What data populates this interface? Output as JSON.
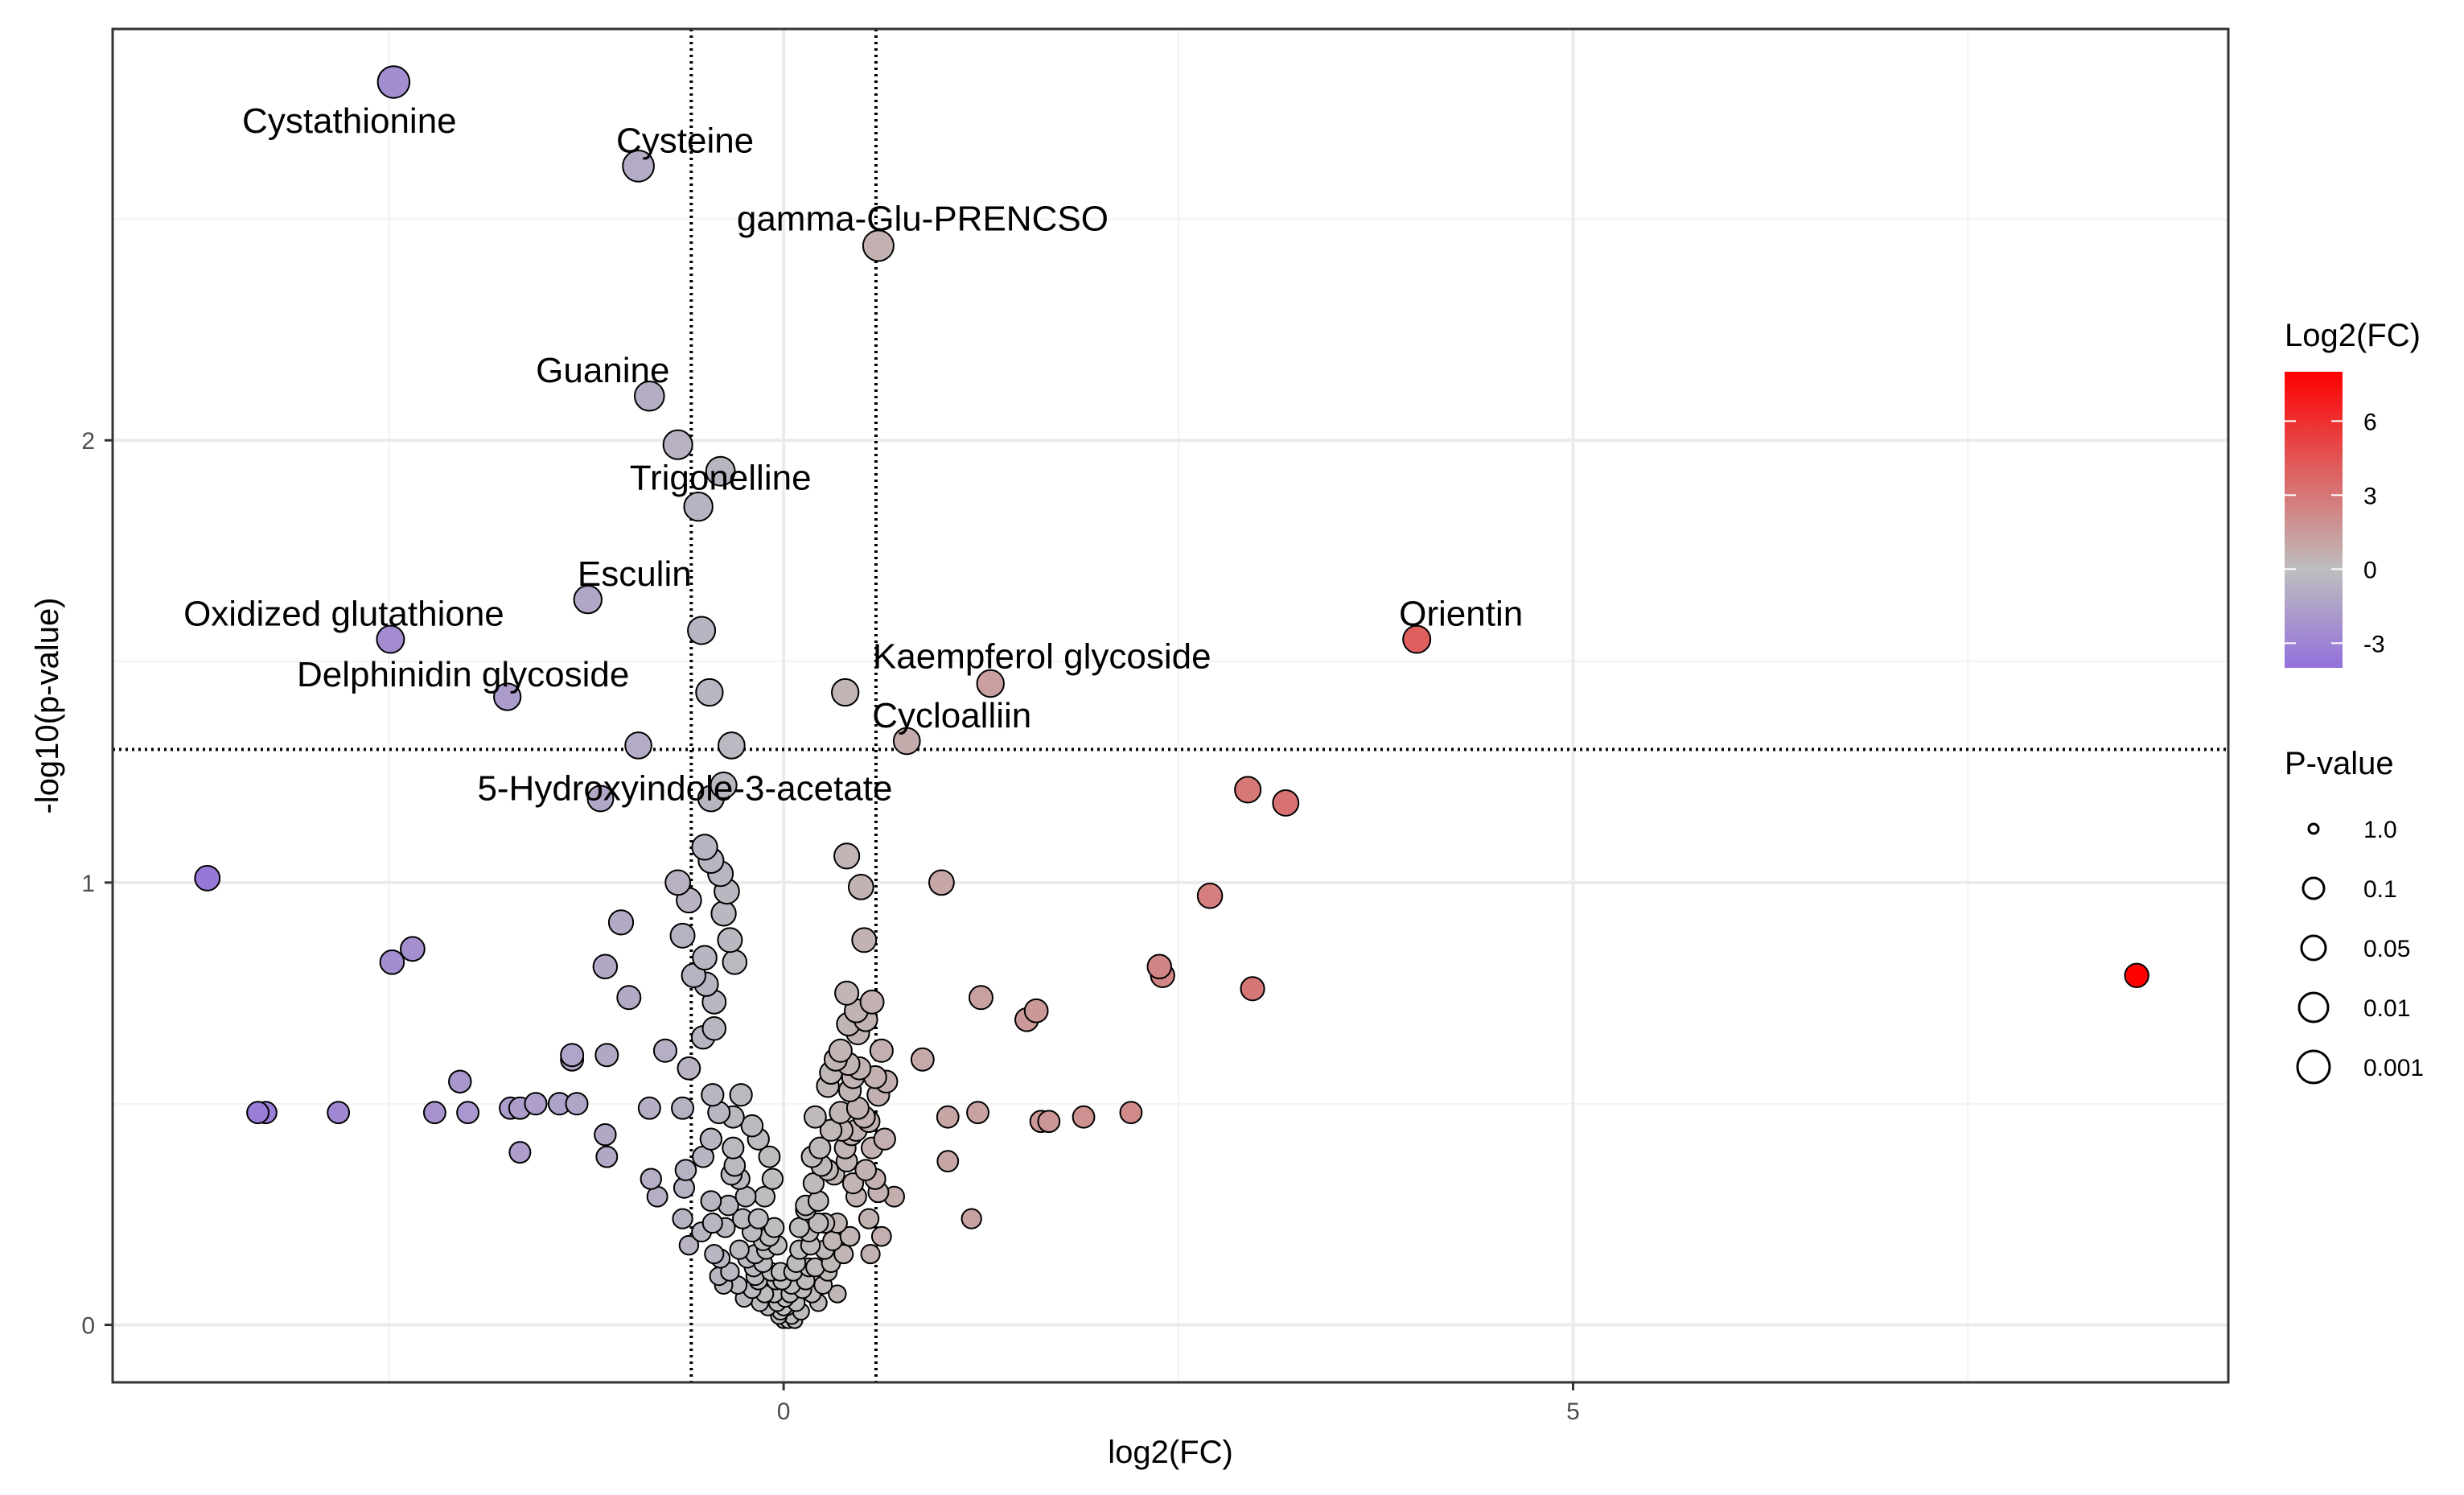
{
  "chart_data": {
    "type": "scatter",
    "title": "",
    "xlabel": "log2(FC)",
    "ylabel": "-log10(p-value)",
    "xlim": [
      -4.25,
      9.15
    ],
    "ylim": [
      -0.13,
      2.93
    ],
    "x_ticks": [
      0,
      5
    ],
    "y_ticks": [
      0,
      1,
      2
    ],
    "grid": true,
    "x_thresholds": [
      -0.585,
      0.585
    ],
    "y_threshold": 1.301,
    "color_legend": {
      "title": "Log2(FC)",
      "ticks": [
        6,
        3,
        0,
        -3
      ],
      "range": [
        -4,
        8
      ],
      "low_color": "#9370DB",
      "mid_color": "#BEBEBE",
      "high_color": "#FF0000"
    },
    "size_legend": {
      "title": "P-value",
      "labels": [
        "1.0",
        "0.1",
        "0.05",
        "0.01",
        "0.001"
      ]
    },
    "labeled_points": [
      {
        "name": "Cystathionine",
        "x": -2.47,
        "y": 2.81
      },
      {
        "name": "Cysteine",
        "x": -0.92,
        "y": 2.62
      },
      {
        "name": "gamma-Glu-PRENCSO",
        "x": 0.6,
        "y": 2.44
      },
      {
        "name": "Guanine",
        "x": -0.85,
        "y": 2.1
      },
      {
        "name": "Trigonelline",
        "x": -0.4,
        "y": 1.93
      },
      {
        "name": "Esculin",
        "x": -1.24,
        "y": 1.64
      },
      {
        "name": "Oxidized glutathione",
        "x": -2.49,
        "y": 1.55
      },
      {
        "name": "Delphinidin glycoside",
        "x": -1.75,
        "y": 1.42
      },
      {
        "name": "Orientin",
        "x": 4.01,
        "y": 1.55
      },
      {
        "name": "Kaempferol glycoside",
        "x": 1.31,
        "y": 1.45
      },
      {
        "name": "Cycloalliin",
        "x": 0.78,
        "y": 1.32
      },
      {
        "name": "5-Hydroxyindole-3-acetate",
        "x": -1.16,
        "y": 1.19
      }
    ],
    "points": [
      [
        -2.47,
        2.81
      ],
      [
        -0.92,
        2.62
      ],
      [
        0.6,
        2.44
      ],
      [
        -0.85,
        2.1
      ],
      [
        -0.67,
        1.99
      ],
      [
        -0.4,
        1.93
      ],
      [
        -0.54,
        1.85
      ],
      [
        -1.24,
        1.64
      ],
      [
        -2.49,
        1.55
      ],
      [
        -1.75,
        1.42
      ],
      [
        4.01,
        1.55
      ],
      [
        1.31,
        1.45
      ],
      [
        0.39,
        1.43
      ],
      [
        0.78,
        1.32
      ],
      [
        -1.16,
        1.19
      ],
      [
        -0.52,
        1.57
      ],
      [
        -0.47,
        1.43
      ],
      [
        -0.92,
        1.31
      ],
      [
        -0.33,
        1.31
      ],
      [
        -0.38,
        1.22
      ],
      [
        -0.46,
        1.19
      ],
      [
        -3.65,
        1.01
      ],
      [
        -2.48,
        0.82
      ],
      [
        -2.35,
        0.85
      ],
      [
        -1.03,
        0.91
      ],
      [
        -1.13,
        0.81
      ],
      [
        -0.98,
        0.74
      ],
      [
        -1.34,
        0.61
      ],
      [
        -1.34,
        0.6
      ],
      [
        -1.12,
        0.61
      ],
      [
        -0.75,
        0.62
      ],
      [
        -2.05,
        0.55
      ],
      [
        -3.28,
        0.48
      ],
      [
        -3.33,
        0.48
      ],
      [
        -2.82,
        0.48
      ],
      [
        -2.21,
        0.48
      ],
      [
        -2.0,
        0.48
      ],
      [
        -1.73,
        0.49
      ],
      [
        -1.67,
        0.49
      ],
      [
        -1.57,
        0.5
      ],
      [
        -1.42,
        0.5
      ],
      [
        -1.31,
        0.5
      ],
      [
        -1.13,
        0.43
      ],
      [
        -1.12,
        0.38
      ],
      [
        -1.67,
        0.39
      ],
      [
        -0.85,
        0.49
      ],
      [
        -0.84,
        0.33
      ],
      [
        -0.8,
        0.29
      ],
      [
        -0.64,
        0.49
      ],
      [
        -0.62,
        0.35
      ],
      [
        -0.63,
        0.31
      ],
      [
        -0.64,
        0.24
      ],
      [
        -0.6,
        0.18
      ],
      [
        -0.45,
        0.52
      ],
      [
        -0.41,
        0.48
      ],
      [
        -0.32,
        0.47
      ],
      [
        -0.27,
        0.52
      ],
      [
        -0.2,
        0.45
      ],
      [
        -0.16,
        0.42
      ],
      [
        -0.09,
        0.38
      ],
      [
        -0.07,
        0.33
      ],
      [
        -0.12,
        0.29
      ],
      [
        -0.46,
        0.42
      ],
      [
        -0.31,
        0.36
      ],
      [
        -0.33,
        0.34
      ],
      [
        -0.46,
        0.28
      ],
      [
        -0.45,
        0.23
      ],
      [
        -0.37,
        0.22
      ],
      [
        -0.35,
        0.27
      ],
      [
        -0.26,
        0.24
      ],
      [
        -0.2,
        0.21
      ],
      [
        -0.16,
        0.24
      ],
      [
        -0.13,
        0.19
      ],
      [
        -0.11,
        0.17
      ],
      [
        -0.08,
        0.12
      ],
      [
        -0.06,
        0.07
      ],
      [
        -0.04,
        0.05
      ],
      [
        -0.02,
        0.03
      ],
      [
        0.0,
        0.01
      ],
      [
        0.02,
        0.04
      ],
      [
        0.04,
        0.07
      ],
      [
        -0.4,
        0.15
      ],
      [
        -0.34,
        0.12
      ],
      [
        -0.29,
        0.09
      ],
      [
        -0.38,
        0.09
      ],
      [
        -0.19,
        0.13
      ],
      [
        -0.2,
        0.08
      ],
      [
        -0.16,
        0.1
      ],
      [
        -0.15,
        0.05
      ],
      [
        -0.12,
        0.07
      ],
      [
        -0.1,
        0.04
      ],
      [
        -0.05,
        0.1
      ],
      [
        -0.02,
        0.12
      ],
      [
        0.05,
        0.02
      ],
      [
        0.08,
        0.05
      ],
      [
        0.11,
        0.03
      ],
      [
        0.12,
        0.08
      ],
      [
        0.14,
        0.1
      ],
      [
        0.16,
        0.13
      ],
      [
        0.17,
        0.18
      ],
      [
        0.16,
        0.21
      ],
      [
        0.14,
        0.26
      ],
      [
        0.22,
        0.28
      ],
      [
        0.26,
        0.17
      ],
      [
        0.28,
        0.12
      ],
      [
        0.25,
        0.09
      ],
      [
        0.22,
        0.05
      ],
      [
        0.34,
        0.07
      ],
      [
        0.32,
        0.34
      ],
      [
        0.28,
        0.35
      ],
      [
        0.24,
        0.36
      ],
      [
        0.19,
        0.32
      ],
      [
        0.2,
        0.47
      ],
      [
        0.28,
        0.54
      ],
      [
        0.3,
        0.57
      ],
      [
        0.33,
        0.6
      ],
      [
        0.36,
        0.62
      ],
      [
        0.41,
        0.59
      ],
      [
        0.36,
        0.48
      ],
      [
        0.42,
        0.53
      ],
      [
        0.39,
        0.4
      ],
      [
        0.46,
        0.44
      ],
      [
        0.4,
        0.37
      ],
      [
        0.44,
        0.32
      ],
      [
        0.47,
        0.49
      ],
      [
        0.51,
        0.47
      ],
      [
        0.54,
        0.46
      ],
      [
        0.56,
        0.4
      ],
      [
        0.58,
        0.33
      ],
      [
        0.41,
        0.68
      ],
      [
        0.46,
        0.71
      ],
      [
        0.52,
        0.69
      ],
      [
        0.47,
        0.66
      ],
      [
        0.56,
        0.73
      ],
      [
        0.4,
        0.75
      ],
      [
        0.51,
        0.87
      ],
      [
        0.49,
        0.99
      ],
      [
        0.4,
        1.06
      ],
      [
        1.0,
        1.0
      ],
      [
        0.88,
        0.6
      ],
      [
        1.25,
        0.74
      ],
      [
        1.6,
        0.71
      ],
      [
        1.54,
        0.69
      ],
      [
        1.04,
        0.37
      ],
      [
        1.19,
        0.24
      ],
      [
        1.04,
        0.47
      ],
      [
        1.23,
        0.48
      ],
      [
        1.63,
        0.46
      ],
      [
        1.68,
        0.46
      ],
      [
        1.9,
        0.47
      ],
      [
        2.2,
        0.48
      ],
      [
        2.38,
        0.81
      ],
      [
        2.4,
        0.79
      ],
      [
        2.7,
        0.97
      ],
      [
        2.94,
        1.21
      ],
      [
        3.18,
        1.18
      ],
      [
        2.97,
        0.76
      ],
      [
        8.57,
        0.79
      ],
      [
        -0.67,
        1.0
      ],
      [
        -0.6,
        0.96
      ],
      [
        -0.5,
        1.08
      ],
      [
        -0.46,
        1.05
      ],
      [
        -0.4,
        1.02
      ],
      [
        -0.36,
        0.98
      ],
      [
        -0.38,
        0.93
      ],
      [
        -0.34,
        0.87
      ],
      [
        -0.31,
        0.82
      ],
      [
        -0.64,
        0.88
      ],
      [
        -0.57,
        0.79
      ],
      [
        -0.49,
        0.77
      ],
      [
        -0.44,
        0.73
      ],
      [
        -0.51,
        0.65
      ],
      [
        -0.44,
        0.67
      ],
      [
        -0.5,
        0.83
      ],
      [
        -0.6,
        0.58
      ],
      [
        0.44,
        0.56
      ],
      [
        0.48,
        0.58
      ],
      [
        0.52,
        0.35
      ],
      [
        0.46,
        0.29
      ],
      [
        0.54,
        0.24
      ],
      [
        0.42,
        0.2
      ],
      [
        0.38,
        0.16
      ],
      [
        0.55,
        0.16
      ],
      [
        0.34,
        0.23
      ],
      [
        0.31,
        0.19
      ],
      [
        0.3,
        0.14
      ],
      [
        0.26,
        0.23
      ],
      [
        0.6,
        0.3
      ],
      [
        0.7,
        0.29
      ],
      [
        0.62,
        0.2
      ],
      [
        0.64,
        0.42
      ],
      [
        0.6,
        0.52
      ],
      [
        0.65,
        0.55
      ],
      [
        0.58,
        0.56
      ],
      [
        0.62,
        0.62
      ],
      [
        0.43,
        0.43
      ],
      [
        0.37,
        0.44
      ],
      [
        0.23,
        0.4
      ],
      [
        0.3,
        0.44
      ],
      [
        0.18,
        0.38
      ],
      [
        0.22,
        0.23
      ],
      [
        0.1,
        0.17
      ],
      [
        0.08,
        0.14
      ],
      [
        0.05,
        0.09
      ],
      [
        -0.01,
        0.1
      ],
      [
        -0.04,
        0.18
      ],
      [
        -0.06,
        0.22
      ],
      [
        -0.09,
        0.2
      ],
      [
        -0.18,
        0.16
      ],
      [
        -0.23,
        0.15
      ],
      [
        -0.28,
        0.17
      ],
      [
        -0.24,
        0.29
      ],
      [
        -0.28,
        0.33
      ],
      [
        -0.32,
        0.4
      ],
      [
        -0.51,
        0.38
      ],
      [
        -0.52,
        0.21
      ],
      [
        -0.44,
        0.16
      ],
      [
        -0.41,
        0.11
      ],
      [
        -0.25,
        0.06
      ],
      [
        -0.18,
        0.11
      ],
      [
        -0.13,
        0.14
      ],
      [
        0.01,
        0.06
      ],
      [
        0.06,
        0.12
      ],
      [
        0.18,
        0.07
      ],
      [
        0.2,
        0.13
      ],
      [
        0.1,
        0.22
      ],
      [
        0.14,
        0.27
      ],
      [
        0.03,
        0.01
      ],
      [
        -0.03,
        0.02
      ],
      [
        0.07,
        0.01
      ],
      [
        0.0,
        0.04
      ]
    ]
  }
}
